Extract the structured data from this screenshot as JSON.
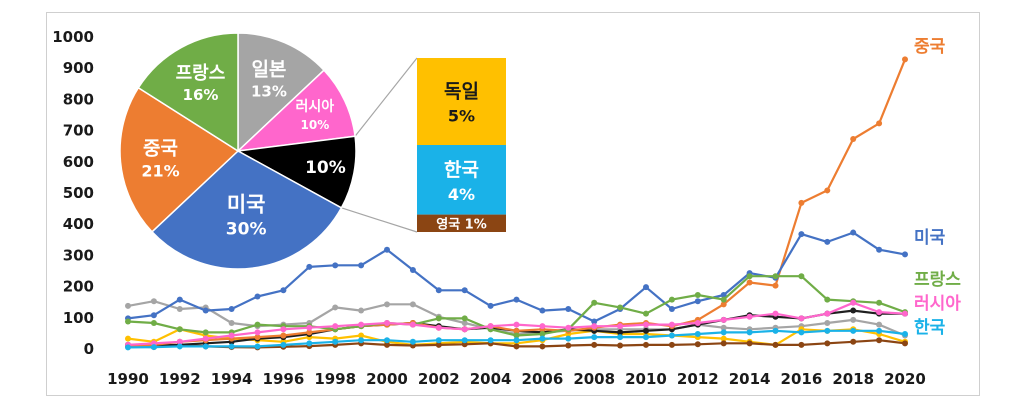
{
  "chart_data": [
    {
      "type": "line",
      "x": [
        1990,
        1991,
        1992,
        1993,
        1994,
        1995,
        1996,
        1997,
        1998,
        1999,
        2000,
        2001,
        2002,
        2003,
        2004,
        2005,
        2006,
        2007,
        2008,
        2009,
        2010,
        2011,
        2012,
        2013,
        2014,
        2015,
        2016,
        2017,
        2018,
        2019,
        2020
      ],
      "xticks": [
        1990,
        1992,
        1994,
        1996,
        1998,
        2000,
        2002,
        2004,
        2006,
        2008,
        2010,
        2012,
        2014,
        2016,
        2018,
        2020
      ],
      "ylim": [
        0,
        1000
      ],
      "yticks": [
        0,
        100,
        200,
        300,
        400,
        500,
        600,
        700,
        800,
        900,
        1000
      ],
      "grid": false,
      "series": [
        {
          "name": "",
          "color": "#a5a5a5",
          "values": [
            135,
            150,
            125,
            130,
            80,
            70,
            75,
            80,
            130,
            120,
            140,
            140,
            100,
            80,
            60,
            45,
            50,
            55,
            60,
            60,
            60,
            60,
            75,
            65,
            60,
            65,
            70,
            80,
            90,
            75,
            40
          ]
        },
        {
          "name": "",
          "color": "#ffc000",
          "values": [
            30,
            20,
            60,
            40,
            30,
            25,
            20,
            35,
            30,
            40,
            20,
            10,
            15,
            20,
            15,
            15,
            25,
            45,
            55,
            45,
            45,
            40,
            35,
            30,
            20,
            10,
            60,
            55,
            60,
            45,
            20
          ]
        },
        {
          "name": "",
          "color": "#8b4513",
          "values": [
            5,
            3,
            10,
            5,
            3,
            2,
            4,
            6,
            10,
            15,
            10,
            8,
            10,
            12,
            15,
            5,
            5,
            8,
            10,
            8,
            10,
            10,
            12,
            15,
            15,
            10,
            10,
            15,
            20,
            25,
            15
          ]
        },
        {
          "name": "",
          "color": "#1f1f1f",
          "values": [
            10,
            8,
            10,
            15,
            20,
            30,
            35,
            45,
            60,
            70,
            75,
            80,
            70,
            60,
            65,
            55,
            50,
            60,
            55,
            50,
            55,
            60,
            75,
            90,
            105,
            100,
            95,
            110,
            120,
            110,
            110
          ]
        },
        {
          "name": "중국",
          "color": "#ed7d31",
          "values": [
            5,
            10,
            20,
            25,
            30,
            35,
            40,
            50,
            60,
            70,
            75,
            80,
            65,
            60,
            70,
            55,
            60,
            55,
            65,
            75,
            80,
            70,
            90,
            140,
            210,
            200,
            465,
            505,
            670,
            720,
            925
          ]
        },
        {
          "name": "미국",
          "color": "#4472c4",
          "values": [
            95,
            105,
            155,
            120,
            125,
            165,
            185,
            260,
            265,
            265,
            315,
            250,
            185,
            185,
            135,
            155,
            120,
            125,
            85,
            125,
            195,
            125,
            150,
            170,
            240,
            225,
            365,
            340,
            370,
            315,
            300
          ]
        },
        {
          "name": "프랑스",
          "color": "#70ad47",
          "values": [
            85,
            80,
            60,
            50,
            50,
            75,
            70,
            70,
            60,
            70,
            80,
            75,
            95,
            95,
            60,
            40,
            45,
            60,
            145,
            130,
            110,
            155,
            170,
            155,
            230,
            230,
            230,
            155,
            150,
            145,
            115
          ]
        },
        {
          "name": "러시아",
          "color": "#ff66cc",
          "values": [
            10,
            15,
            20,
            30,
            40,
            50,
            60,
            65,
            70,
            75,
            80,
            75,
            65,
            60,
            70,
            75,
            70,
            65,
            70,
            70,
            75,
            75,
            80,
            90,
            100,
            110,
            95,
            110,
            145,
            115,
            110
          ]
        },
        {
          "name": "한국",
          "color": "#1ab2e8",
          "values": [
            2,
            3,
            5,
            5,
            5,
            5,
            10,
            15,
            20,
            25,
            25,
            20,
            25,
            25,
            25,
            25,
            30,
            30,
            35,
            35,
            35,
            40,
            45,
            50,
            50,
            55,
            50,
            55,
            55,
            55,
            45
          ]
        }
      ]
    },
    {
      "type": "pie",
      "slices": [
        {
          "label": "일본",
          "value": 13,
          "value_label": "13%",
          "color": "#a5a5a5",
          "text_color": "#1a1a1a"
        },
        {
          "label": "러시아",
          "value": 10,
          "value_label": "10%",
          "color": "#ff66cc",
          "text_color": "#1a1a1a"
        },
        {
          "label": "",
          "value": 10,
          "value_label": "10%",
          "color": "#000000",
          "text_color": "#ffffff"
        },
        {
          "label": "미국",
          "value": 30,
          "value_label": "30%",
          "color": "#4472c4",
          "text_color": "#ffffff"
        },
        {
          "label": "중국",
          "value": 21,
          "value_label": "21%",
          "color": "#ed7d31",
          "text_color": "#ffffff"
        },
        {
          "label": "프랑스",
          "value": 16,
          "value_label": "16%",
          "color": "#70ad47",
          "text_color": "#1a1a1a"
        }
      ]
    },
    {
      "type": "bar",
      "stacked": true,
      "segments": [
        {
          "label": "독일",
          "value": 5,
          "value_label": "5%",
          "color": "#ffc000",
          "text_color": "#1a1a1a"
        },
        {
          "label": "한국",
          "value": 4,
          "value_label": "4%",
          "color": "#1ab2e8",
          "text_color": "#ffffff"
        },
        {
          "label": "영국",
          "value": 1,
          "value_label": "1%",
          "color": "#8b4513",
          "text_color": "#ffffff"
        }
      ]
    }
  ]
}
